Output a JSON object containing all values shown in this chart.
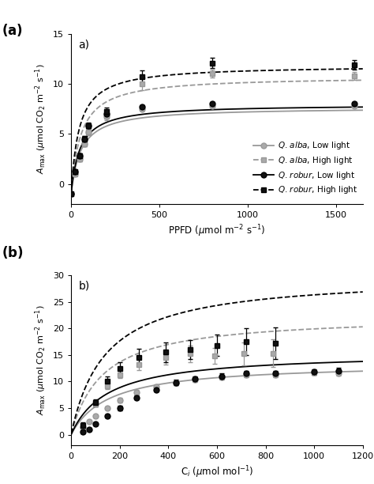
{
  "panel_a": {
    "ylim": [
      -2,
      15
    ],
    "yticks": [
      0,
      5,
      10,
      15
    ],
    "xlim": [
      0,
      1650
    ],
    "xticks": [
      0,
      500,
      1000,
      1500
    ],
    "series_order": [
      "alba_low",
      "alba_high",
      "robur_low",
      "robur_high"
    ],
    "series": {
      "alba_low": {
        "x": [
          0,
          20,
          50,
          75,
          100,
          200,
          400,
          800,
          1600
        ],
        "y": [
          -1.0,
          1.0,
          2.5,
          4.0,
          5.2,
          6.8,
          7.5,
          7.8,
          7.8
        ],
        "yerr": [
          0.15,
          0.2,
          0.25,
          0.25,
          0.25,
          0.25,
          0.2,
          0.2,
          0.2
        ],
        "marker": "o",
        "color": "#999999",
        "mfc": "#aaaaaa",
        "linestyle": "-"
      },
      "alba_high": {
        "x": [
          0,
          20,
          50,
          75,
          100,
          200,
          400,
          800,
          1600
        ],
        "y": [
          -1.0,
          1.0,
          2.5,
          4.0,
          5.2,
          6.8,
          10.0,
          11.0,
          10.8
        ],
        "yerr": [
          0.15,
          0.2,
          0.25,
          0.25,
          0.3,
          0.4,
          0.6,
          0.4,
          0.4
        ],
        "marker": "s",
        "color": "#999999",
        "mfc": "#aaaaaa",
        "linestyle": "--"
      },
      "robur_low": {
        "x": [
          0,
          20,
          50,
          75,
          100,
          200,
          400,
          800,
          1600
        ],
        "y": [
          -1.0,
          1.2,
          2.8,
          4.5,
          5.8,
          7.0,
          7.7,
          8.0,
          8.0
        ],
        "yerr": [
          0.15,
          0.2,
          0.25,
          0.25,
          0.25,
          0.25,
          0.2,
          0.2,
          0.2
        ],
        "marker": "o",
        "color": "#000000",
        "mfc": "#111111",
        "linestyle": "-"
      },
      "robur_high": {
        "x": [
          0,
          20,
          50,
          75,
          100,
          200,
          400,
          800,
          1600
        ],
        "y": [
          -1.0,
          1.2,
          2.8,
          4.5,
          5.8,
          7.2,
          10.7,
          12.1,
          11.9
        ],
        "yerr": [
          0.15,
          0.2,
          0.25,
          0.3,
          0.35,
          0.45,
          0.65,
          0.55,
          0.5
        ],
        "marker": "s",
        "color": "#000000",
        "mfc": "#111111",
        "linestyle": "--"
      }
    },
    "curves": {
      "alba_low": {
        "Amax": 8.7,
        "km": 55,
        "Rd": 1.05,
        "color": "#999999",
        "ls": "-"
      },
      "alba_high": {
        "Amax": 11.8,
        "km": 55,
        "Rd": 1.05,
        "color": "#999999",
        "ls": "--"
      },
      "robur_low": {
        "Amax": 9.0,
        "km": 50,
        "Rd": 1.05,
        "color": "#000000",
        "ls": "-"
      },
      "robur_high": {
        "Amax": 12.9,
        "km": 45,
        "Rd": 1.05,
        "color": "#000000",
        "ls": "--"
      }
    },
    "legend": {
      "alba_low": "Q. alba, Low light",
      "alba_high": "Q. alba, High light",
      "robur_low": "Q. robur, Low light",
      "robur_high": "Q. robur, High light"
    }
  },
  "panel_b": {
    "ylim": [
      -2,
      30
    ],
    "yticks": [
      0,
      5,
      10,
      15,
      20,
      25,
      30
    ],
    "xlim": [
      0,
      1200
    ],
    "xticks": [
      0,
      200,
      400,
      600,
      800,
      1000,
      1200
    ],
    "series_order": [
      "alba_low",
      "alba_high",
      "robur_low",
      "robur_high"
    ],
    "series": {
      "alba_low": {
        "x": [
          50,
          75,
          100,
          150,
          200,
          270,
          350,
          430,
          510,
          620,
          720,
          840,
          1000,
          1100
        ],
        "y": [
          1.5,
          2.5,
          3.5,
          5.0,
          6.5,
          8.0,
          9.0,
          9.8,
          10.3,
          10.8,
          11.3,
          11.3,
          11.7,
          11.6
        ],
        "yerr": [
          0.3,
          0.3,
          0.3,
          0.35,
          0.4,
          0.4,
          0.4,
          0.45,
          0.45,
          0.45,
          0.45,
          0.5,
          0.5,
          0.5
        ],
        "marker": "o",
        "color": "#999999",
        "mfc": "#aaaaaa"
      },
      "alba_high": {
        "x": [
          100,
          150,
          200,
          280,
          390,
          490,
          590,
          710,
          830
        ],
        "y": [
          5.8,
          9.2,
          11.3,
          13.2,
          14.5,
          15.2,
          14.8,
          15.2,
          15.3
        ],
        "yerr": [
          0.5,
          0.6,
          0.7,
          1.0,
          1.3,
          1.5,
          1.5,
          2.2,
          2.6
        ],
        "marker": "s",
        "color": "#999999",
        "mfc": "#aaaaaa"
      },
      "robur_low": {
        "x": [
          50,
          75,
          100,
          150,
          200,
          270,
          350,
          430,
          510,
          620,
          720,
          840,
          1000,
          1100
        ],
        "y": [
          0.5,
          1.0,
          2.0,
          3.5,
          5.0,
          7.0,
          8.5,
          9.8,
          10.5,
          11.0,
          11.5,
          11.5,
          11.8,
          12.0
        ],
        "yerr": [
          0.3,
          0.3,
          0.3,
          0.3,
          0.4,
          0.4,
          0.4,
          0.5,
          0.5,
          0.5,
          0.5,
          0.55,
          0.55,
          0.55
        ],
        "marker": "o",
        "color": "#000000",
        "mfc": "#111111"
      },
      "robur_high": {
        "x": [
          50,
          100,
          150,
          200,
          280,
          390,
          490,
          600,
          720,
          840
        ],
        "y": [
          1.8,
          6.0,
          10.0,
          12.5,
          14.5,
          15.5,
          16.0,
          16.8,
          17.5,
          17.2
        ],
        "yerr": [
          0.5,
          0.7,
          0.9,
          1.2,
          1.6,
          1.8,
          1.8,
          2.0,
          2.5,
          3.0
        ],
        "marker": "s",
        "color": "#000000",
        "mfc": "#111111"
      }
    },
    "curves": {
      "alba_low": {
        "Amax": 13.5,
        "km": 155,
        "color": "#999999",
        "ls": "-"
      },
      "alba_high": {
        "Amax": 22.5,
        "km": 130,
        "color": "#999999",
        "ls": "--"
      },
      "robur_low": {
        "Amax": 15.5,
        "km": 150,
        "color": "#000000",
        "ls": "-"
      },
      "robur_high": {
        "Amax": 30.0,
        "km": 140,
        "color": "#000000",
        "ls": "--"
      }
    }
  }
}
